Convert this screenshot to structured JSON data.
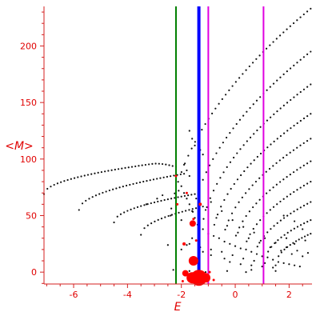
{
  "chart_data": {
    "type": "scatter",
    "title": "",
    "xlabel": "E",
    "ylabel": "<M>",
    "xlim": [
      -7.1,
      2.85
    ],
    "ylim": [
      -10.5,
      235
    ],
    "x_ticks": [
      -6,
      -4,
      -2,
      0,
      2
    ],
    "x_tick_labels": [
      "-6",
      "-4",
      "-2",
      "0",
      "2"
    ],
    "y_ticks": [
      0,
      50,
      100,
      150,
      200
    ],
    "y_tick_labels": [
      "0",
      "50",
      "100",
      "150",
      "200"
    ],
    "grid": false,
    "legend": "none",
    "colors": {
      "axis": "#d42020",
      "text": "#e00000",
      "dots": "#111111",
      "big_dots": "#ff0000",
      "green_line": "#008000",
      "blue_line": "#0000ff",
      "magenta_line": "#e000e0"
    },
    "vertical_lines": [
      {
        "x": -2.2,
        "color": "#008000",
        "width": "thin"
      },
      {
        "x": -1.35,
        "color": "#0000ff",
        "width": "thick"
      },
      {
        "x": -1.0,
        "color": "#e000e0",
        "width": "thin"
      },
      {
        "x": 1.05,
        "color": "#e000e0",
        "width": "thin"
      }
    ],
    "curves": [
      {
        "x_start": -7.1,
        "x_end": -2.2,
        "y_start": 69,
        "y_end": 93,
        "shape": "concave",
        "peak_x": -3.0,
        "peak_y": 96,
        "drop_after_peak": true
      },
      {
        "x_start": -5.8,
        "x_end": -1.9,
        "y_start": 55,
        "y_end": 87,
        "shape": "concave"
      },
      {
        "x_start": -4.5,
        "x_end": -1.5,
        "y_start": 44,
        "y_end": 69,
        "shape": "concave"
      },
      {
        "x_start": -3.5,
        "x_end": -1.2,
        "y_start": 33,
        "y_end": 58,
        "shape": "concave"
      },
      {
        "x_start": -2.5,
        "x_end": 2.8,
        "y_start": 24,
        "y_end": 233,
        "shape": "concave"
      },
      {
        "x_start": -1.7,
        "x_end": 2.8,
        "y_start": 25,
        "y_end": 195,
        "shape": "concave"
      },
      {
        "x_start": -1.3,
        "x_end": 2.8,
        "y_start": 22,
        "y_end": 166,
        "shape": "concave"
      },
      {
        "x_start": -0.9,
        "x_end": 2.8,
        "y_start": 20,
        "y_end": 140,
        "shape": "concave"
      },
      {
        "x_start": -0.5,
        "x_end": 2.8,
        "y_start": 18,
        "y_end": 118,
        "shape": "concave"
      },
      {
        "x_start": -0.1,
        "x_end": 2.8,
        "y_start": 15,
        "y_end": 98,
        "shape": "concave"
      },
      {
        "x_start": 0.3,
        "x_end": 2.8,
        "y_start": 12,
        "y_end": 80,
        "shape": "concave"
      },
      {
        "x_start": 0.7,
        "x_end": 2.8,
        "y_start": 10,
        "y_end": 62,
        "shape": "concave"
      },
      {
        "x_start": 1.1,
        "x_end": 2.8,
        "y_start": 8,
        "y_end": 46,
        "shape": "concave"
      },
      {
        "x_start": 1.5,
        "x_end": 2.8,
        "y_start": 6,
        "y_end": 34,
        "shape": "concave"
      }
    ],
    "scattered_points": [
      [
        -2.0,
        76
      ],
      [
        -1.9,
        70
      ],
      [
        -1.8,
        65
      ],
      [
        -1.7,
        60
      ],
      [
        -1.6,
        54
      ],
      [
        -1.5,
        48
      ],
      [
        -1.9,
        95
      ],
      [
        -1.8,
        90
      ],
      [
        -1.7,
        85
      ],
      [
        -2.1,
        72
      ],
      [
        -1.4,
        42
      ],
      [
        -1.2,
        38
      ],
      [
        -1.0,
        34
      ],
      [
        -0.8,
        32
      ],
      [
        -0.6,
        30
      ],
      [
        -0.4,
        27
      ],
      [
        -0.2,
        25
      ],
      [
        0.0,
        23
      ],
      [
        0.2,
        21
      ],
      [
        0.4,
        20
      ],
      [
        0.6,
        18
      ],
      [
        0.8,
        16
      ],
      [
        1.0,
        14
      ],
      [
        1.2,
        13
      ],
      [
        1.4,
        11
      ],
      [
        1.6,
        9
      ],
      [
        1.8,
        8
      ],
      [
        2.0,
        7
      ],
      [
        2.2,
        6
      ],
      [
        2.4,
        5
      ],
      [
        -1.1,
        55
      ],
      [
        -0.7,
        48
      ],
      [
        -0.3,
        41
      ],
      [
        0.1,
        35
      ],
      [
        0.5,
        30
      ],
      [
        0.9,
        26
      ],
      [
        1.3,
        22
      ],
      [
        1.7,
        19
      ],
      [
        2.1,
        16
      ],
      [
        2.5,
        14
      ],
      [
        -0.9,
        62
      ],
      [
        -0.5,
        54
      ],
      [
        -0.1,
        46
      ],
      [
        0.3,
        40
      ],
      [
        0.7,
        35
      ],
      [
        1.1,
        30
      ],
      [
        1.5,
        26
      ],
      [
        1.9,
        22
      ],
      [
        2.3,
        19
      ],
      [
        2.7,
        17
      ],
      [
        -0.2,
        9
      ],
      [
        0.2,
        7
      ],
      [
        0.6,
        6
      ],
      [
        1.0,
        5
      ],
      [
        1.4,
        4
      ],
      [
        -1.6,
        30
      ],
      [
        -1.8,
        24
      ],
      [
        -2.0,
        20
      ],
      [
        -1.2,
        18
      ],
      [
        -0.9,
        15
      ],
      [
        -0.4,
        12
      ],
      [
        0.6,
        2
      ],
      [
        1.9,
        30
      ],
      [
        2.2,
        25
      ],
      [
        2.5,
        38
      ],
      [
        2.6,
        28
      ],
      [
        2.2,
        45
      ],
      [
        1.8,
        50
      ],
      [
        -2.7,
        68
      ],
      [
        -2.9,
        65
      ],
      [
        -3.3,
        60
      ],
      [
        -2.4,
        50
      ],
      [
        -2.0,
        46
      ],
      [
        -1.6,
        44
      ],
      [
        -2.3,
        2
      ],
      [
        -1.7,
        1
      ],
      [
        -1.1,
        0
      ],
      [
        -0.3,
        1
      ],
      [
        0.4,
        0
      ],
      [
        1.5,
        1
      ],
      [
        -1.2,
        104
      ],
      [
        -1.3,
        108
      ],
      [
        -1.5,
        112
      ],
      [
        -1.6,
        118
      ],
      [
        -1.7,
        125
      ]
    ],
    "big_points": [
      {
        "x": -1.35,
        "y": -5,
        "size": 10
      },
      {
        "x": -1.6,
        "y": -5,
        "size": 7
      },
      {
        "x": -1.1,
        "y": -5,
        "size": 6
      },
      {
        "x": -1.55,
        "y": 10,
        "size": 6
      },
      {
        "x": -1.85,
        "y": -1,
        "size": 4
      },
      {
        "x": -1.58,
        "y": 43,
        "size": 4
      },
      {
        "x": -1.9,
        "y": 25,
        "size": 2
      },
      {
        "x": -1.3,
        "y": 60,
        "size": 2
      },
      {
        "x": -2.15,
        "y": 60,
        "size": 1.5
      },
      {
        "x": -1.8,
        "y": 70,
        "size": 1.5
      },
      {
        "x": -0.95,
        "y": 0,
        "size": 1.5
      },
      {
        "x": -2.2,
        "y": 85,
        "size": 1.5
      },
      {
        "x": -1.45,
        "y": 28,
        "size": 1.5
      },
      {
        "x": -1.55,
        "y": 47,
        "size": 1.5
      },
      {
        "x": -0.8,
        "y": -7,
        "size": 1.5
      },
      {
        "x": -1.95,
        "y": -8,
        "size": 1.5
      }
    ]
  }
}
